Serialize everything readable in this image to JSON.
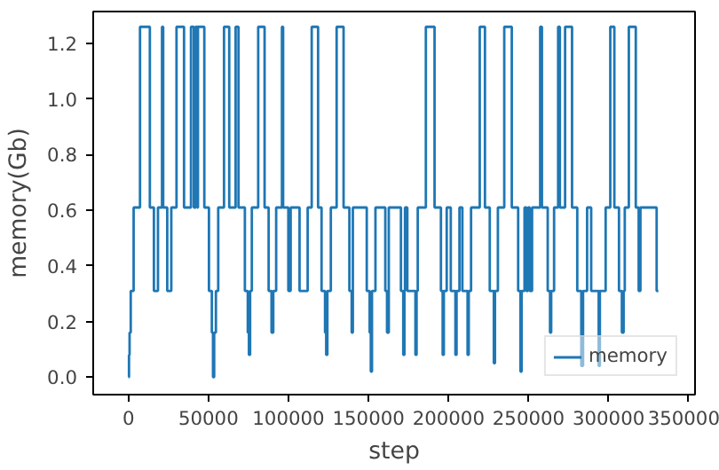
{
  "chart_data": {
    "type": "step",
    "xlabel": "step",
    "ylabel": "memory(Gb)",
    "xlim": [
      -22000,
      354000
    ],
    "ylim": [
      -0.063,
      1.315
    ],
    "xticks": [
      0,
      50000,
      100000,
      150000,
      200000,
      250000,
      300000,
      350000
    ],
    "yticks": [
      {
        "value": 0,
        "label": "0.0"
      },
      {
        "value": 0.2,
        "label": "0.2"
      },
      {
        "value": 0.4,
        "label": "0.4"
      },
      {
        "value": 0.6,
        "label": "0.6"
      },
      {
        "value": 0.8,
        "label": "0.8"
      },
      {
        "value": 1.0,
        "label": "1.0"
      },
      {
        "value": 1.2,
        "label": "1.2"
      }
    ],
    "grid": false,
    "legend": "bottom right",
    "series": [
      {
        "name": "memory",
        "color": "#1f77b4",
        "x": [
          0,
          362,
          724,
          1448,
          3258,
          7240,
          13394,
          15928,
          18462,
          20996,
          21720,
          24254,
          26788,
          30046,
          34752,
          39096,
          40906,
          41992,
          43078,
          43440,
          47422,
          50318,
          52128,
          52852,
          53576,
          54662,
          56110,
          59730,
          62988,
          66970,
          68780,
          72762,
          74572,
          75296,
          76020,
          77106,
          81088,
          85070,
          87604,
          89414,
          90500,
          92310,
          95930,
          96654,
          99912,
          101360,
          106914,
          111982,
          114516,
          118498,
          120670,
          122842,
          123566,
          124290,
          126462,
          130082,
          134426,
          138046,
          139494,
          140218,
          148906,
          150716,
          151440,
          152164,
          154336,
          160490,
          161576,
          162662,
          170264,
          171712,
          172436,
          172798,
          174246,
          179314,
          180038,
          180762,
          185830,
          191260,
          195242,
          196328,
          197052,
          198862,
          201396,
          204292,
          205016,
          206826,
          208636,
          211894,
          212618,
          214066,
          219496,
          222754,
          225760,
          228294,
          229018,
          230828,
          234810,
          239516,
          243498,
          244946,
          245670,
          247480,
          248566,
          249652,
          250738,
          252186,
          257254,
          258340,
          261960,
          263408,
          264132,
          265942,
          268476,
          269562,
          272820,
          277164,
          280422,
          282956,
          284042,
          286576,
          289110,
          293816,
          294540,
          298160,
          301056,
          303590,
          306486,
          308296,
          309382,
          310106,
          312640,
          316984,
          318794,
          319880,
          330016,
          331102
        ],
        "values": [
          0.0,
          0.08,
          0.16,
          0.31,
          0.61,
          1.26,
          0.61,
          0.31,
          0.61,
          1.26,
          0.61,
          0.31,
          0.61,
          1.26,
          0.61,
          1.26,
          0.61,
          1.26,
          0.61,
          1.26,
          0.61,
          0.31,
          0.16,
          0.0,
          0.16,
          0.31,
          0.61,
          1.26,
          0.61,
          1.26,
          0.61,
          0.31,
          0.16,
          0.08,
          0.31,
          0.61,
          1.26,
          0.61,
          0.31,
          0.16,
          0.31,
          0.61,
          1.26,
          0.61,
          0.31,
          0.61,
          0.31,
          0.61,
          1.26,
          0.61,
          0.31,
          0.16,
          0.08,
          0.31,
          0.61,
          1.26,
          0.61,
          0.31,
          0.16,
          0.61,
          0.31,
          0.16,
          0.02,
          0.31,
          0.61,
          0.31,
          0.16,
          0.61,
          0.31,
          0.08,
          0.31,
          0.61,
          0.31,
          0.08,
          0.31,
          0.61,
          1.26,
          0.61,
          0.31,
          0.08,
          0.31,
          0.61,
          0.31,
          0.08,
          0.31,
          0.61,
          0.31,
          0.08,
          0.31,
          0.61,
          1.26,
          0.61,
          0.31,
          0.05,
          0.31,
          0.61,
          1.26,
          0.61,
          0.31,
          0.02,
          0.31,
          0.61,
          0.31,
          0.61,
          0.31,
          0.61,
          1.26,
          0.61,
          0.31,
          0.16,
          0.31,
          0.61,
          1.26,
          0.61,
          1.26,
          0.61,
          0.31,
          0.04,
          0.31,
          0.61,
          0.31,
          0.04,
          0.31,
          0.61,
          1.26,
          0.61,
          0.31,
          0.16,
          0.31,
          0.61,
          1.26,
          0.61,
          0.31,
          0.61,
          0.31,
          0.31
        ]
      }
    ]
  }
}
